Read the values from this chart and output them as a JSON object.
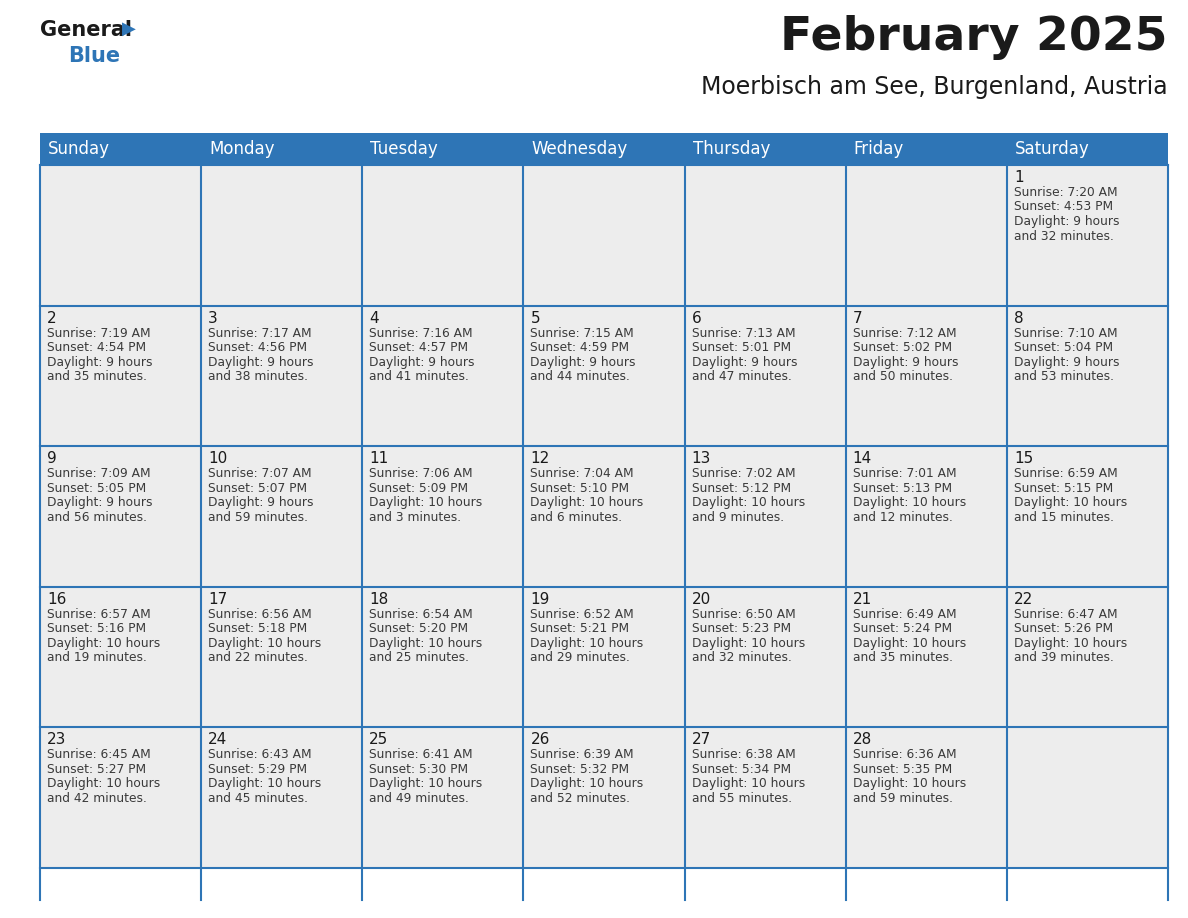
{
  "title": "February 2025",
  "subtitle": "Moerbisch am See, Burgenland, Austria",
  "header_bg_color": "#2E75B6",
  "header_text_color": "#FFFFFF",
  "day_names": [
    "Sunday",
    "Monday",
    "Tuesday",
    "Wednesday",
    "Thursday",
    "Friday",
    "Saturday"
  ],
  "bg_color": "#FFFFFF",
  "cell_bg_color": "#EDEDED",
  "cell_border_color": "#2E75B6",
  "date_text_color": "#1A1A1A",
  "info_text_color": "#3A3A3A",
  "logo_general_color": "#1A1A1A",
  "logo_blue_color": "#2E75B6",
  "days": [
    {
      "day": 1,
      "col": 6,
      "row": 0,
      "sunrise": "7:20 AM",
      "sunset": "4:53 PM",
      "daylight_hours": "9 hours",
      "daylight_mins": "and 32 minutes."
    },
    {
      "day": 2,
      "col": 0,
      "row": 1,
      "sunrise": "7:19 AM",
      "sunset": "4:54 PM",
      "daylight_hours": "9 hours",
      "daylight_mins": "and 35 minutes."
    },
    {
      "day": 3,
      "col": 1,
      "row": 1,
      "sunrise": "7:17 AM",
      "sunset": "4:56 PM",
      "daylight_hours": "9 hours",
      "daylight_mins": "and 38 minutes."
    },
    {
      "day": 4,
      "col": 2,
      "row": 1,
      "sunrise": "7:16 AM",
      "sunset": "4:57 PM",
      "daylight_hours": "9 hours",
      "daylight_mins": "and 41 minutes."
    },
    {
      "day": 5,
      "col": 3,
      "row": 1,
      "sunrise": "7:15 AM",
      "sunset": "4:59 PM",
      "daylight_hours": "9 hours",
      "daylight_mins": "and 44 minutes."
    },
    {
      "day": 6,
      "col": 4,
      "row": 1,
      "sunrise": "7:13 AM",
      "sunset": "5:01 PM",
      "daylight_hours": "9 hours",
      "daylight_mins": "and 47 minutes."
    },
    {
      "day": 7,
      "col": 5,
      "row": 1,
      "sunrise": "7:12 AM",
      "sunset": "5:02 PM",
      "daylight_hours": "9 hours",
      "daylight_mins": "and 50 minutes."
    },
    {
      "day": 8,
      "col": 6,
      "row": 1,
      "sunrise": "7:10 AM",
      "sunset": "5:04 PM",
      "daylight_hours": "9 hours",
      "daylight_mins": "and 53 minutes."
    },
    {
      "day": 9,
      "col": 0,
      "row": 2,
      "sunrise": "7:09 AM",
      "sunset": "5:05 PM",
      "daylight_hours": "9 hours",
      "daylight_mins": "and 56 minutes."
    },
    {
      "day": 10,
      "col": 1,
      "row": 2,
      "sunrise": "7:07 AM",
      "sunset": "5:07 PM",
      "daylight_hours": "9 hours",
      "daylight_mins": "and 59 minutes."
    },
    {
      "day": 11,
      "col": 2,
      "row": 2,
      "sunrise": "7:06 AM",
      "sunset": "5:09 PM",
      "daylight_hours": "10 hours",
      "daylight_mins": "and 3 minutes."
    },
    {
      "day": 12,
      "col": 3,
      "row": 2,
      "sunrise": "7:04 AM",
      "sunset": "5:10 PM",
      "daylight_hours": "10 hours",
      "daylight_mins": "and 6 minutes."
    },
    {
      "day": 13,
      "col": 4,
      "row": 2,
      "sunrise": "7:02 AM",
      "sunset": "5:12 PM",
      "daylight_hours": "10 hours",
      "daylight_mins": "and 9 minutes."
    },
    {
      "day": 14,
      "col": 5,
      "row": 2,
      "sunrise": "7:01 AM",
      "sunset": "5:13 PM",
      "daylight_hours": "10 hours",
      "daylight_mins": "and 12 minutes."
    },
    {
      "day": 15,
      "col": 6,
      "row": 2,
      "sunrise": "6:59 AM",
      "sunset": "5:15 PM",
      "daylight_hours": "10 hours",
      "daylight_mins": "and 15 minutes."
    },
    {
      "day": 16,
      "col": 0,
      "row": 3,
      "sunrise": "6:57 AM",
      "sunset": "5:16 PM",
      "daylight_hours": "10 hours",
      "daylight_mins": "and 19 minutes."
    },
    {
      "day": 17,
      "col": 1,
      "row": 3,
      "sunrise": "6:56 AM",
      "sunset": "5:18 PM",
      "daylight_hours": "10 hours",
      "daylight_mins": "and 22 minutes."
    },
    {
      "day": 18,
      "col": 2,
      "row": 3,
      "sunrise": "6:54 AM",
      "sunset": "5:20 PM",
      "daylight_hours": "10 hours",
      "daylight_mins": "and 25 minutes."
    },
    {
      "day": 19,
      "col": 3,
      "row": 3,
      "sunrise": "6:52 AM",
      "sunset": "5:21 PM",
      "daylight_hours": "10 hours",
      "daylight_mins": "and 29 minutes."
    },
    {
      "day": 20,
      "col": 4,
      "row": 3,
      "sunrise": "6:50 AM",
      "sunset": "5:23 PM",
      "daylight_hours": "10 hours",
      "daylight_mins": "and 32 minutes."
    },
    {
      "day": 21,
      "col": 5,
      "row": 3,
      "sunrise": "6:49 AM",
      "sunset": "5:24 PM",
      "daylight_hours": "10 hours",
      "daylight_mins": "and 35 minutes."
    },
    {
      "day": 22,
      "col": 6,
      "row": 3,
      "sunrise": "6:47 AM",
      "sunset": "5:26 PM",
      "daylight_hours": "10 hours",
      "daylight_mins": "and 39 minutes."
    },
    {
      "day": 23,
      "col": 0,
      "row": 4,
      "sunrise": "6:45 AM",
      "sunset": "5:27 PM",
      "daylight_hours": "10 hours",
      "daylight_mins": "and 42 minutes."
    },
    {
      "day": 24,
      "col": 1,
      "row": 4,
      "sunrise": "6:43 AM",
      "sunset": "5:29 PM",
      "daylight_hours": "10 hours",
      "daylight_mins": "and 45 minutes."
    },
    {
      "day": 25,
      "col": 2,
      "row": 4,
      "sunrise": "6:41 AM",
      "sunset": "5:30 PM",
      "daylight_hours": "10 hours",
      "daylight_mins": "and 49 minutes."
    },
    {
      "day": 26,
      "col": 3,
      "row": 4,
      "sunrise": "6:39 AM",
      "sunset": "5:32 PM",
      "daylight_hours": "10 hours",
      "daylight_mins": "and 52 minutes."
    },
    {
      "day": 27,
      "col": 4,
      "row": 4,
      "sunrise": "6:38 AM",
      "sunset": "5:34 PM",
      "daylight_hours": "10 hours",
      "daylight_mins": "and 55 minutes."
    },
    {
      "day": 28,
      "col": 5,
      "row": 4,
      "sunrise": "6:36 AM",
      "sunset": "5:35 PM",
      "daylight_hours": "10 hours",
      "daylight_mins": "and 59 minutes."
    }
  ],
  "num_rows": 5,
  "num_cols": 7,
  "header_font_size": 12,
  "date_font_size": 11,
  "info_font_size": 8.8,
  "title_font_size": 34,
  "subtitle_font_size": 17
}
